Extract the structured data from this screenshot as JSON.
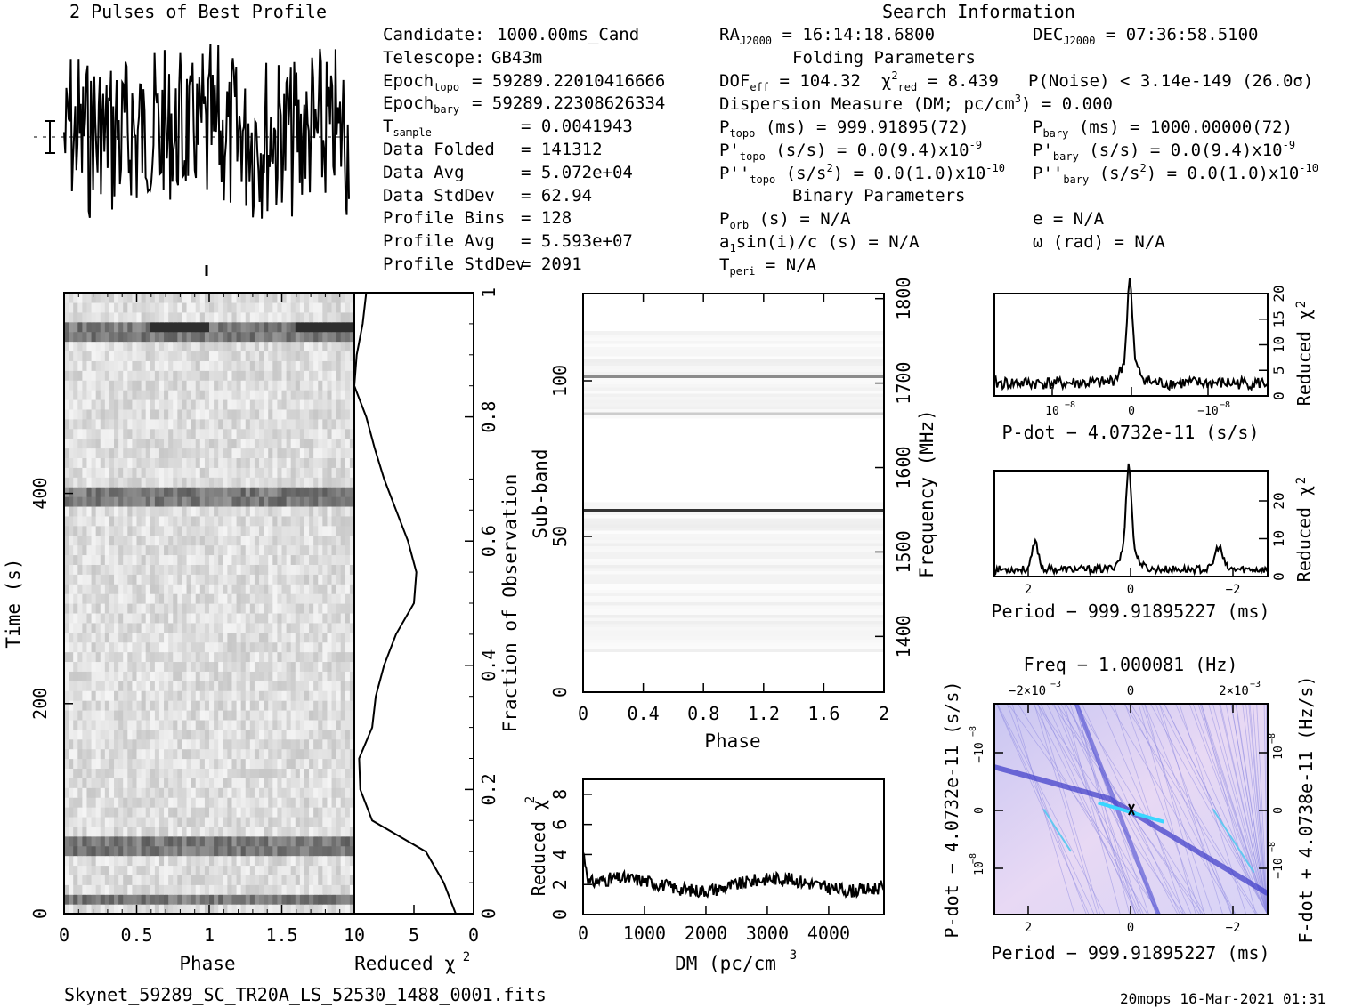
{
  "title": "2 Pulses of Best Profile",
  "search_header": "Search Information",
  "folding_header": "Folding Parameters",
  "binary_header": "Binary Parameters",
  "filename": "Skynet_59289_SC_TR20A_LS_52530_1488_0001.fits",
  "footer": "20mops  16-Mar-2021 01:31",
  "info_left": [
    {
      "label": "Candidate:",
      "sub": "",
      "value": "1000.00ms_Cand"
    },
    {
      "label": "Telescope:",
      "sub": "",
      "value": "GB43m"
    },
    {
      "label": "Epoch",
      "sub": "topo",
      "value": "= 59289.22010416666"
    },
    {
      "label": "Epoch",
      "sub": "bary",
      "value": "= 59289.22308626334"
    },
    {
      "label": "T",
      "sub": "sample",
      "value": "=  0.0041943"
    },
    {
      "label": "Data Folded",
      "sub": "",
      "value": "=  141312"
    },
    {
      "label": "Data Avg",
      "sub": "",
      "value": "=  5.072e+04"
    },
    {
      "label": "Data StdDev",
      "sub": "",
      "value": "=  62.94"
    },
    {
      "label": "Profile Bins",
      "sub": "",
      "value": "=  128"
    },
    {
      "label": "Profile Avg",
      "sub": "",
      "value": "=  5.593e+07"
    },
    {
      "label": "Profile StdDev",
      "sub": "",
      "value": "=  2091"
    }
  ],
  "search": {
    "ra": "RA",
    "ra_sub": "J2000",
    "ra_val": "= 16:14:18.6800",
    "dec": "DEC",
    "dec_sub": "J2000",
    "dec_val": "= 07:36:58.5100"
  },
  "folding": {
    "dof": "DOF",
    "dof_sub": "eff",
    "dof_val": "= 104.32",
    "chi": "χ",
    "chi_sup": "2",
    "chi_sub": "red",
    "chi_val": "= 8.439",
    "noise": "P(Noise) < 3.14e-149   (26.0σ)",
    "dm": "Dispersion Measure (DM; pc/cm",
    "dm_sup": "3",
    "dm_val": ") = 0.000",
    "ptopo": "P",
    "ptopo_sub": "topo",
    "ptopo_val": "(ms) =  999.91895(72)",
    "pbary": "P",
    "pbary_sub": "bary",
    "pbary_val": "(ms) =  1000.00000(72)",
    "pdtopo": "P'",
    "pdtopo_sub": "topo",
    "pdtopo_val": "(s/s) = 0.0(9.4)x10",
    "pdtopo_exp": "-9",
    "pdbary": "P'",
    "pdbary_sub": "bary",
    "pdbary_val": "(s/s) = 0.0(9.4)x10",
    "pdbary_exp": "-9",
    "pddtopo": "P''",
    "pddtopo_sub": "topo",
    "pddtopo_val": "(s/s",
    "pddtopo_sup": "2",
    "pddtopo_val2": ") = 0.0(1.0)x10",
    "pddtopo_exp": "-10",
    "pddbary": "P''",
    "pddbary_sub": "bary",
    "pddbary_val": "(s/s",
    "pddbary_sup": "2",
    "pddbary_val2": ") = 0.0(1.0)x10",
    "pddbary_exp": "-10"
  },
  "binary": {
    "porb": "P",
    "porb_sub": "orb",
    "porb_val": "(s) = N/A",
    "e": "e = N/A",
    "a1": "a",
    "a1_sub": "1",
    "a1_val": "sin(i)/c (s) = N/A",
    "omega": "ω (rad) = N/A",
    "tperi": "T",
    "tperi_sub": "peri",
    "tperi_val": "= N/A"
  },
  "chart_data": [
    {
      "type": "line",
      "id": "profile",
      "title": "2 Pulses of Best Profile",
      "x": [
        0,
        2
      ],
      "note_values": "noisy profile, two pulses"
    },
    {
      "type": "heatmap",
      "id": "time-phase",
      "xlabel": "Phase",
      "ylabel": "Time (s)",
      "xlim": [
        0,
        2
      ],
      "ylim": [
        0,
        591
      ],
      "x_ticks": [
        "0",
        "0.5",
        "1",
        "1.5"
      ],
      "y_ticks": [
        "0",
        "200",
        "400"
      ]
    },
    {
      "type": "line",
      "id": "time-chi2",
      "xlabel": "Reduced χ",
      "xlabel_sup": "2",
      "ylabel": "Fraction of Observation",
      "x_ticks": [
        "10",
        "5",
        "0"
      ],
      "y_ticks": [
        "0",
        "0.2",
        "0.4",
        "0.6",
        "0.8",
        "1"
      ],
      "fraction": [
        0,
        0.05,
        0.1,
        0.15,
        0.2,
        0.25,
        0.3,
        0.35,
        0.4,
        0.45,
        0.5,
        0.55,
        0.6,
        0.65,
        0.7,
        0.75,
        0.8,
        0.85,
        0.9,
        0.95,
        1.0
      ],
      "chi2": [
        1.5,
        2.5,
        4,
        8.5,
        9.5,
        9.6,
        8.5,
        8.2,
        7.5,
        6.5,
        5,
        4.8,
        5.5,
        6.5,
        7.5,
        8.3,
        9,
        10,
        9.8,
        9.3,
        9.0
      ]
    },
    {
      "type": "heatmap",
      "id": "subband-phase",
      "xlabel": "Phase",
      "ylabel": "Sub-band",
      "ylabel2": "Frequency (MHz)",
      "x_ticks": [
        "0",
        "0.4",
        "0.8",
        "1.2",
        "1.6",
        "2"
      ],
      "y_ticks": [
        "0",
        "50",
        "100"
      ],
      "y2_ticks": [
        "1400",
        "1500",
        "1600",
        "1700",
        "1800"
      ]
    },
    {
      "type": "line",
      "id": "dm-chi2",
      "xlabel": "DM (pc/cm",
      "xlabel_sup": "3",
      "ylabel": "Reduced χ",
      "ylabel_sup": "2",
      "xlim": [
        0,
        4900
      ],
      "ylim": [
        0,
        9
      ],
      "x_ticks": [
        "0",
        "1000",
        "2000",
        "3000",
        "4000"
      ],
      "y_ticks": [
        "0",
        "2",
        "4",
        "6",
        "8"
      ]
    },
    {
      "type": "line",
      "id": "pdot-chi2",
      "xlabel": "P-dot − 4.0732e-11 (s/s)",
      "ylabel": "Reduced χ",
      "ylabel_sup": "2",
      "x_ticks": [
        "10",
        "0",
        "−10"
      ],
      "x_tick_exp": "−8",
      "y_ticks": [
        "0",
        "5",
        "10",
        "15",
        "20"
      ]
    },
    {
      "type": "line",
      "id": "period-chi2",
      "xlabel": "Period − 999.91895227 (ms)",
      "ylabel": "Reduced χ",
      "ylabel_sup": "2",
      "x_ticks": [
        "2",
        "0",
        "−2"
      ],
      "y_ticks": [
        "0",
        "10",
        "20"
      ]
    },
    {
      "type": "heatmap",
      "id": "pdot-period",
      "title": "Freq − 1.000081 (Hz)",
      "xlabel": "Period − 999.91895227 (ms)",
      "ylabel": "P-dot − 4.0732e-11 (s/s)",
      "ylabel2": "F-dot + 4.0738e-11 (Hz/s)",
      "x_ticks": [
        "2",
        "0",
        "−2"
      ],
      "top_ticks": [
        "−2×10",
        "0",
        "2×10"
      ],
      "top_tick_exp": "−3",
      "y_ticks": [
        "−10",
        "0",
        "10"
      ],
      "y_tick_exp": "−8",
      "y2_ticks": [
        "10",
        "0",
        "−10"
      ],
      "y2_tick_exp": "−8"
    }
  ]
}
